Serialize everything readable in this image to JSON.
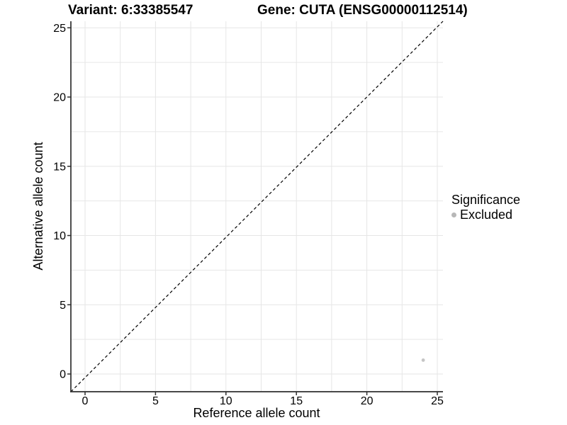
{
  "header": {
    "variant_title": "Variant: 6:33385547",
    "gene_title": "Gene: CUTA (ENSG00000112514)"
  },
  "legend": {
    "title": "Significance",
    "items": [
      {
        "label": "Excluded",
        "color": "#b7b7b7",
        "icon": "circle-dot-icon"
      }
    ],
    "position": "right"
  },
  "chart_data": {
    "type": "scatter",
    "title_left": "Variant: 6:33385547",
    "title_right": "Gene: CUTA (ENSG00000112514)",
    "xlabel": "Reference allele count",
    "ylabel": "Alternative allele count",
    "xlim": [
      -1,
      26.3
    ],
    "ylim": [
      -1.3,
      26.8
    ],
    "x_ticks": [
      0,
      5,
      10,
      15,
      20,
      25
    ],
    "y_ticks": [
      0,
      5,
      10,
      15,
      20,
      25
    ],
    "grid": true,
    "grid_step": 2.5,
    "legend_position": "right",
    "series": [
      {
        "name": "Excluded",
        "color": "#c5c5c5",
        "points": [
          {
            "x": 24,
            "y": 1
          }
        ]
      }
    ],
    "reference_line": {
      "type": "identity",
      "slope": 1,
      "intercept": 0,
      "style": "dashed",
      "color": "#000000"
    },
    "colors": {
      "gridline": "#e6e6e6",
      "axis_line": "#2f2f2f",
      "tick_label": "#000000",
      "background": "#ffffff"
    }
  }
}
